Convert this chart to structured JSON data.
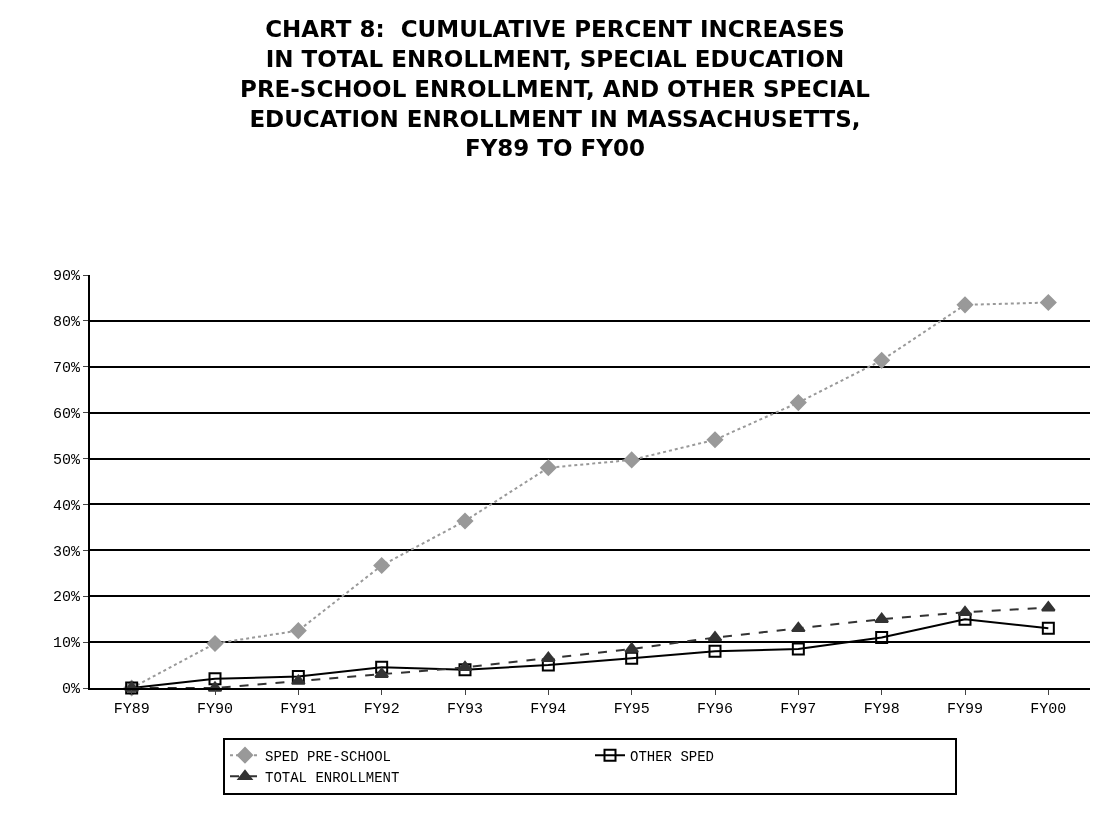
{
  "chart_data": {
    "type": "line",
    "title": "CHART 8:  CUMULATIVE PERCENT INCREASES\nIN TOTAL ENROLLMENT, SPECIAL EDUCATION\nPRE-SCHOOL ENROLLMENT, AND OTHER SPECIAL\nEDUCATION ENROLLMENT IN MASSACHUSETTS,\nFY89 TO FY00",
    "categories": [
      "FY89",
      "FY90",
      "FY91",
      "FY92",
      "FY93",
      "FY94",
      "FY95",
      "FY96",
      "FY97",
      "FY98",
      "FY99",
      "FY00"
    ],
    "series": [
      {
        "name": "SPED PRE-SCHOOL",
        "color": "#999999",
        "marker": "diamond",
        "line_style": "dotted",
        "values": [
          0,
          9.7,
          12.5,
          26.7,
          36.4,
          48,
          49.7,
          54.1,
          62.2,
          71.4,
          83.5,
          84
        ]
      },
      {
        "name": "OTHER SPED",
        "color": "#000000",
        "marker": "square",
        "line_style": "solid",
        "values": [
          0,
          2,
          2.5,
          4.5,
          4,
          5,
          6.5,
          8,
          8.5,
          11,
          15,
          13
        ]
      },
      {
        "name": "TOTAL ENROLLMENT",
        "color": "#333333",
        "marker": "triangle",
        "line_style": "dashed",
        "values": [
          0,
          0,
          1.5,
          3,
          4.5,
          6.5,
          8.5,
          11,
          13,
          15,
          16.5,
          17.5
        ]
      }
    ],
    "ylim": [
      0,
      90
    ],
    "yticks": [
      {
        "value": 0,
        "label": "0%"
      },
      {
        "value": 10,
        "label": "10%"
      },
      {
        "value": 20,
        "label": "20%"
      },
      {
        "value": 30,
        "label": "30%"
      },
      {
        "value": 40,
        "label": "40%"
      },
      {
        "value": 50,
        "label": "50%"
      },
      {
        "value": 60,
        "label": "60%"
      },
      {
        "value": 70,
        "label": "70%"
      },
      {
        "value": 80,
        "label": "80%"
      },
      {
        "value": 90,
        "label": "90%"
      }
    ],
    "grid": "y",
    "legend": "bottom"
  }
}
